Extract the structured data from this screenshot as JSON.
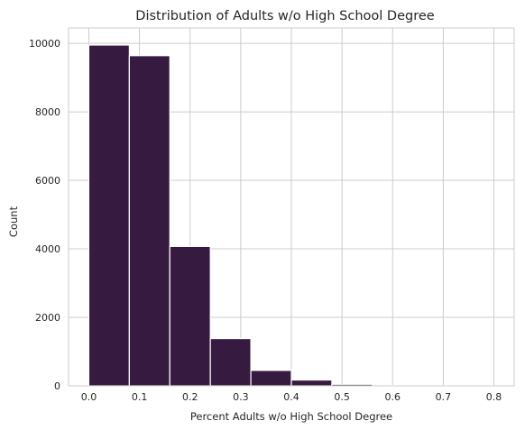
{
  "chart_data": {
    "type": "bar",
    "title": "Distribution of Adults w/o High School Degree",
    "xlabel": "Percent Adults w/o High School Degree",
    "ylabel": "Count",
    "xlim": [
      -0.04,
      0.84
    ],
    "ylim": [
      0,
      10450
    ],
    "xticks": [
      0.0,
      0.1,
      0.2,
      0.3,
      0.4,
      0.5,
      0.6,
      0.7,
      0.8
    ],
    "xtick_labels": [
      "0.0",
      "0.1",
      "0.2",
      "0.3",
      "0.4",
      "0.5",
      "0.6",
      "0.7",
      "0.8"
    ],
    "yticks": [
      0,
      2000,
      4000,
      6000,
      8000,
      10000
    ],
    "ytick_labels": [
      "0",
      "2000",
      "4000",
      "6000",
      "8000",
      "10000"
    ],
    "grid": true,
    "bar_color": "#371a3f",
    "bins": [
      {
        "x0": 0.0,
        "x1": 0.08,
        "count": 9950
      },
      {
        "x0": 0.08,
        "x1": 0.16,
        "count": 9640
      },
      {
        "x0": 0.16,
        "x1": 0.24,
        "count": 4070
      },
      {
        "x0": 0.24,
        "x1": 0.32,
        "count": 1380
      },
      {
        "x0": 0.32,
        "x1": 0.4,
        "count": 450
      },
      {
        "x0": 0.4,
        "x1": 0.48,
        "count": 170
      },
      {
        "x0": 0.48,
        "x1": 0.56,
        "count": 45
      },
      {
        "x0": 0.56,
        "x1": 0.64,
        "count": 12
      },
      {
        "x0": 0.64,
        "x1": 0.72,
        "count": 4
      },
      {
        "x0": 0.72,
        "x1": 0.8,
        "count": 2
      }
    ]
  }
}
